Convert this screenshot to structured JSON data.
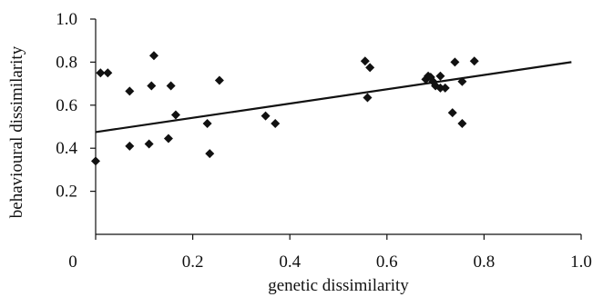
{
  "chart_data": {
    "type": "scatter",
    "xlabel": "genetic dissimilarity",
    "ylabel": "behavioural dissimilarity",
    "xlim": [
      0,
      1.0
    ],
    "ylim": [
      0,
      1.0
    ],
    "x_ticks": [
      "0",
      "0.2",
      "0.4",
      "0.6",
      "0.8",
      "1.0"
    ],
    "y_ticks": [
      "0.2",
      "0.4",
      "0.6",
      "0.8",
      "1.0"
    ],
    "grid": false,
    "legend": "none",
    "marker": "diamond",
    "marker_color": "#111111",
    "points": [
      [
        0.0,
        0.34
      ],
      [
        0.01,
        0.75
      ],
      [
        0.025,
        0.75
      ],
      [
        0.07,
        0.665
      ],
      [
        0.07,
        0.41
      ],
      [
        0.11,
        0.42
      ],
      [
        0.115,
        0.69
      ],
      [
        0.12,
        0.83
      ],
      [
        0.15,
        0.445
      ],
      [
        0.155,
        0.69
      ],
      [
        0.165,
        0.555
      ],
      [
        0.23,
        0.515
      ],
      [
        0.235,
        0.375
      ],
      [
        0.255,
        0.715
      ],
      [
        0.35,
        0.55
      ],
      [
        0.37,
        0.515
      ],
      [
        0.555,
        0.805
      ],
      [
        0.56,
        0.635
      ],
      [
        0.565,
        0.775
      ],
      [
        0.68,
        0.72
      ],
      [
        0.685,
        0.735
      ],
      [
        0.69,
        0.73
      ],
      [
        0.695,
        0.71
      ],
      [
        0.7,
        0.69
      ],
      [
        0.71,
        0.735
      ],
      [
        0.71,
        0.68
      ],
      [
        0.72,
        0.68
      ],
      [
        0.735,
        0.565
      ],
      [
        0.74,
        0.8
      ],
      [
        0.755,
        0.515
      ],
      [
        0.755,
        0.71
      ],
      [
        0.78,
        0.805
      ]
    ],
    "trendline": {
      "type": "linear",
      "x": [
        0,
        0.98
      ],
      "y": [
        0.475,
        0.8
      ]
    }
  }
}
